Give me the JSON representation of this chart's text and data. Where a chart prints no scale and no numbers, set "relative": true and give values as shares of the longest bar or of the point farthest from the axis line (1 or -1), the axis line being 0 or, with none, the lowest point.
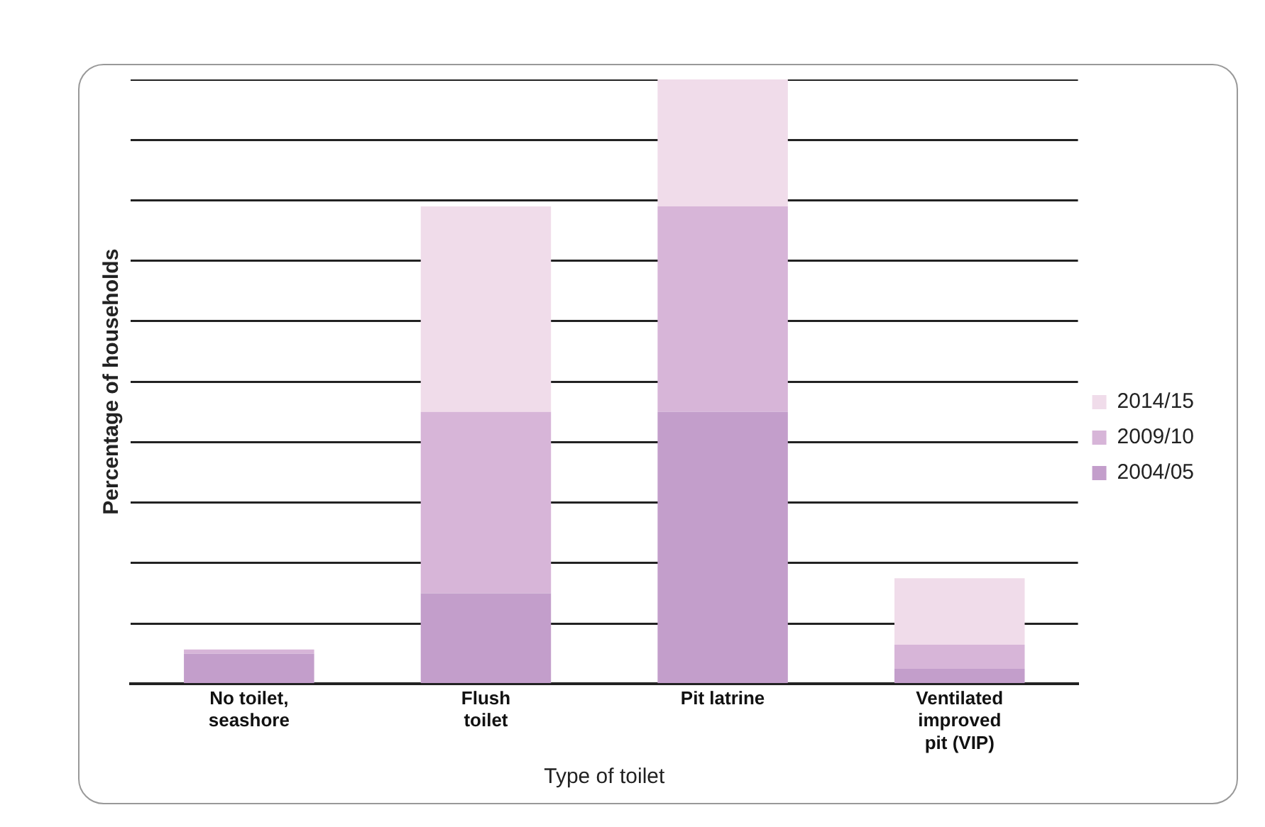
{
  "chart_data": {
    "type": "bar",
    "stacked": true,
    "relative": true,
    "xlabel": "Type of toilet",
    "ylabel": "Percentage of households",
    "categories": [
      "No toilet, seashore",
      "Flush toilet",
      "Pit latrine",
      "Ventilated improved pit (VIP)"
    ],
    "series": [
      {
        "name": "2004/05",
        "color": "#c39ecb",
        "values": [
          0.05,
          0.15,
          0.45,
          0.025
        ]
      },
      {
        "name": "2009/10",
        "color": "#d7b5d8",
        "values": [
          0.007,
          0.3,
          0.34,
          0.04
        ]
      },
      {
        "name": "2014/15",
        "color": "#f0dcea",
        "values": [
          null,
          0.34,
          0.21,
          0.11
        ]
      }
    ],
    "grid": "y",
    "legend": "right"
  }
}
